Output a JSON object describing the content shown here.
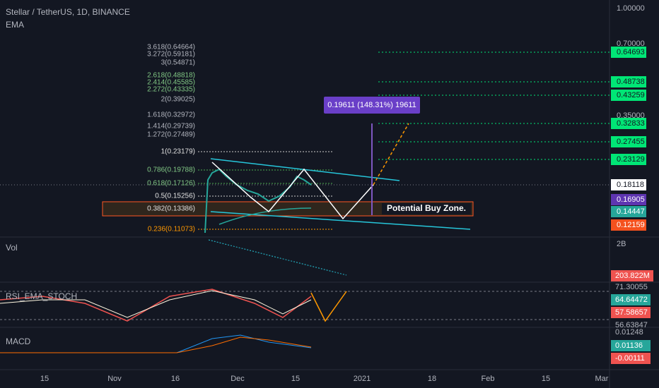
{
  "header": {
    "symbol": "Stellar / TetherUS, 1D, BINANCE",
    "indicator": "EMA"
  },
  "fib_levels": [
    "3.618(0.64664)",
    "3.272(0.59181)",
    "3(0.54871)",
    "2.618(0.48818)",
    "2.414(0.45585)",
    "2.272(0.43335)",
    "2(0.39025)",
    "1.618(0.32972)",
    "1.414(0.29739)",
    "1.272(0.27489)",
    "1(0.23179)",
    "0.786(0.19788)",
    "0.618(0.17126)",
    "0.5(0.15256)",
    "0.382(0.13386)",
    "0.236(0.11073)"
  ],
  "price_axis": {
    "scale": [
      "1.00000",
      "0.70000",
      "0.35000"
    ],
    "targets": [
      "0.64693",
      "0.48738",
      "0.43259",
      "0.32833",
      "0.27455",
      "0.23129"
    ],
    "last": "0.18118",
    "ema1": "0.16905",
    "ema2": "0.14447",
    "ema3": "0.12159"
  },
  "measure": "0.19611 (148.31%) 19611",
  "zone": "Potential Buy Zone.",
  "volume": {
    "title": "Vol",
    "scale": "2B",
    "last": "203.822M"
  },
  "rsi": {
    "title": "RSI_EMA_STOCH",
    "values": [
      "71.30055",
      "64.64472",
      "57.58657",
      "56.63847"
    ]
  },
  "macd": {
    "title": "MACD",
    "values": [
      "0.01248",
      "0.01136",
      "-0.00111"
    ]
  },
  "time_axis": [
    "15",
    "Nov",
    "16",
    "Dec",
    "15",
    "2021",
    "18",
    "Feb",
    "15",
    "Mar"
  ]
}
